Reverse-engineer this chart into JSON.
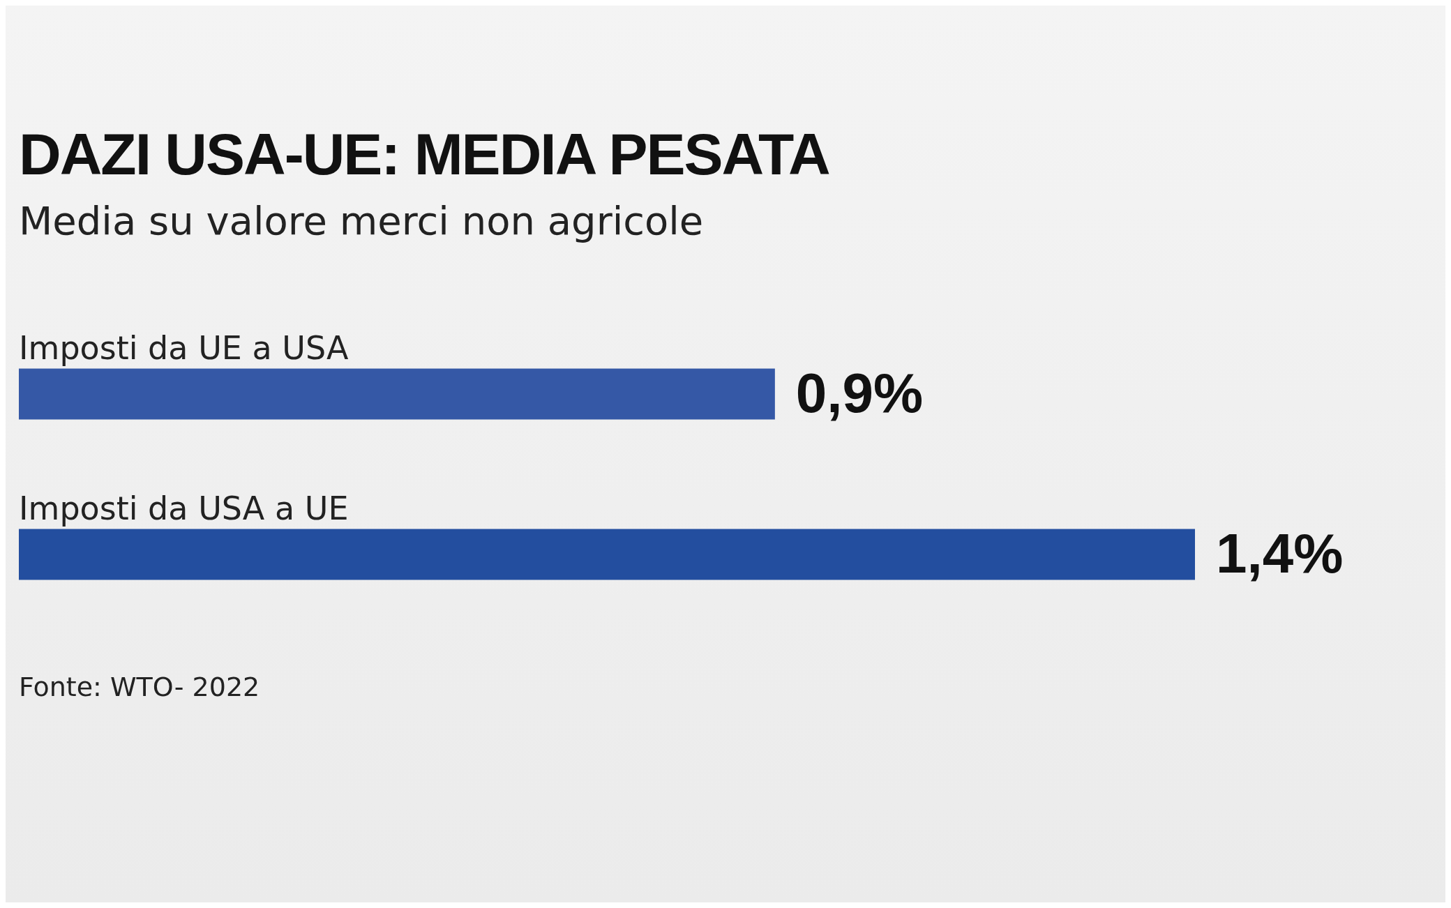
{
  "chart_data": {
    "type": "bar",
    "orientation": "horizontal",
    "title": "DAZI USA-UE: MEDIA PESATA",
    "subtitle": "Media su valore merci non agricole",
    "categories": [
      "Imposti da UE a USA",
      "Imposti da USA a UE"
    ],
    "values": [
      0.9,
      1.4
    ],
    "colors": [
      "#3558a6",
      "#234e9f"
    ],
    "value_labels": [
      "0,9%",
      "1,4%"
    ],
    "tick_labels": false,
    "annotations": [
      "Fonte: WTO- 2022"
    ]
  }
}
